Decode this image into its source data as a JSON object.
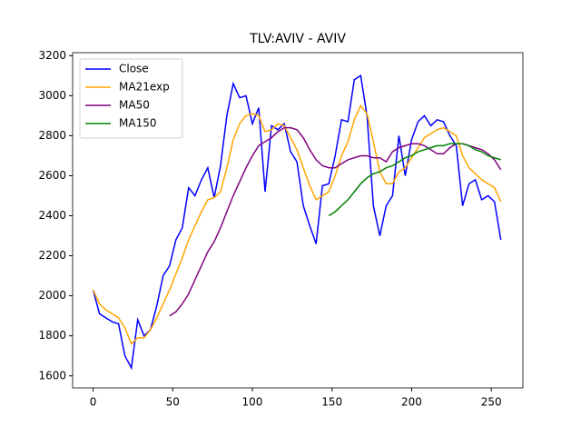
{
  "chart_data": {
    "type": "line",
    "title": "TLV:AVIV - AVIV",
    "x": [
      0,
      4,
      8,
      12,
      16,
      20,
      24,
      28,
      32,
      36,
      40,
      44,
      48,
      52,
      56,
      60,
      64,
      68,
      72,
      76,
      80,
      84,
      88,
      92,
      96,
      100,
      104,
      108,
      112,
      116,
      120,
      124,
      128,
      132,
      136,
      140,
      144,
      148,
      152,
      156,
      160,
      164,
      168,
      172,
      176,
      180,
      184,
      188,
      192,
      196,
      200,
      204,
      208,
      212,
      216,
      220,
      224,
      228,
      232,
      236,
      240,
      244,
      248,
      252,
      256
    ],
    "series": [
      {
        "name": "Close",
        "color": "#0000ff",
        "values": [
          2030,
          1910,
          1890,
          1870,
          1860,
          1700,
          1640,
          1880,
          1800,
          1830,
          1950,
          2100,
          2150,
          2280,
          2340,
          2540,
          2500,
          2580,
          2640,
          2490,
          2650,
          2900,
          3060,
          2990,
          3000,
          2860,
          2940,
          2520,
          2850,
          2830,
          2860,
          2720,
          2670,
          2450,
          2350,
          2260,
          2550,
          2560,
          2700,
          2880,
          2870,
          3080,
          3100,
          2900,
          2450,
          2300,
          2450,
          2500,
          2800,
          2600,
          2780,
          2870,
          2900,
          2850,
          2880,
          2870,
          2800,
          2750,
          2450,
          2560,
          2580,
          2480,
          2500,
          2470,
          2280
        ]
      },
      {
        "name": "MA21exp",
        "color": "#ffa500",
        "values": [
          2030,
          1960,
          1930,
          1910,
          1890,
          1840,
          1760,
          1790,
          1790,
          1830,
          1890,
          1960,
          2030,
          2110,
          2190,
          2280,
          2350,
          2420,
          2480,
          2490,
          2520,
          2640,
          2780,
          2860,
          2900,
          2910,
          2900,
          2820,
          2830,
          2860,
          2850,
          2790,
          2730,
          2640,
          2550,
          2480,
          2500,
          2520,
          2600,
          2700,
          2770,
          2880,
          2950,
          2910,
          2770,
          2620,
          2560,
          2560,
          2620,
          2640,
          2690,
          2740,
          2790,
          2810,
          2830,
          2840,
          2820,
          2800,
          2700,
          2640,
          2610,
          2580,
          2560,
          2540,
          2470
        ]
      },
      {
        "name": "MA50",
        "color": "#800080",
        "values": [
          null,
          null,
          null,
          null,
          null,
          null,
          null,
          null,
          null,
          null,
          null,
          null,
          1900,
          1920,
          1960,
          2010,
          2080,
          2150,
          2220,
          2270,
          2340,
          2420,
          2500,
          2570,
          2640,
          2700,
          2750,
          2770,
          2790,
          2820,
          2840,
          2840,
          2830,
          2790,
          2730,
          2680,
          2650,
          2640,
          2640,
          2660,
          2680,
          2690,
          2700,
          2700,
          2690,
          2690,
          2670,
          2720,
          2740,
          2750,
          2760,
          2760,
          2750,
          2730,
          2710,
          2710,
          2740,
          2760,
          2760,
          2750,
          2740,
          2730,
          2710,
          2680,
          2630
        ]
      },
      {
        "name": "MA150",
        "color": "#008000",
        "values": [
          null,
          null,
          null,
          null,
          null,
          null,
          null,
          null,
          null,
          null,
          null,
          null,
          null,
          null,
          null,
          null,
          null,
          null,
          null,
          null,
          null,
          null,
          null,
          null,
          null,
          null,
          null,
          null,
          null,
          null,
          null,
          null,
          null,
          null,
          null,
          null,
          null,
          2400,
          2420,
          2450,
          2480,
          2520,
          2560,
          2590,
          2610,
          2620,
          2640,
          2650,
          2670,
          2690,
          2700,
          2720,
          2730,
          2740,
          2750,
          2750,
          2760,
          2760,
          2760,
          2750,
          2730,
          2720,
          2700,
          2690,
          2680
        ]
      }
    ],
    "xlim": [
      -12.85,
      269.85
    ],
    "ylim": [
      1540,
      3215
    ],
    "xticks": [
      0,
      50,
      100,
      150,
      200,
      250
    ],
    "yticks": [
      1600,
      1800,
      2000,
      2200,
      2400,
      2600,
      2800,
      3000,
      3200
    ],
    "legend": "upper left"
  }
}
